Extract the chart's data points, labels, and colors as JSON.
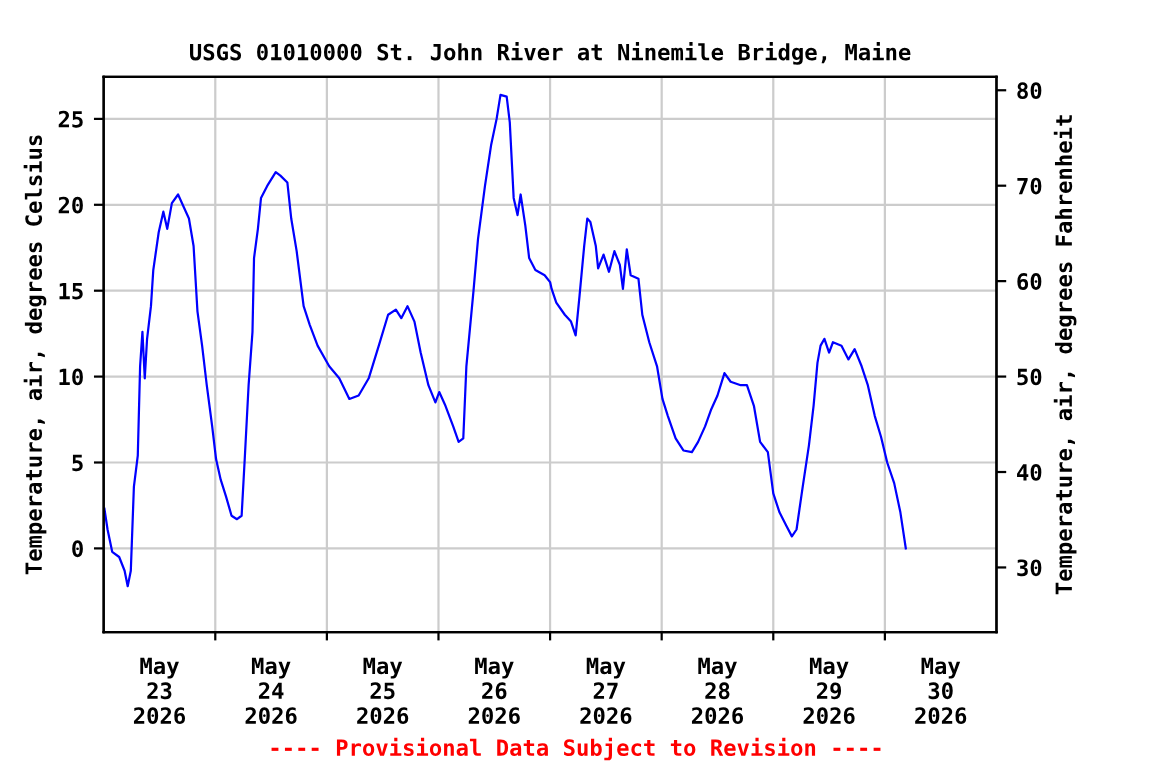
{
  "chart_data": {
    "type": "line",
    "title": "USGS 01010000 St. John River at Ninemile Bridge, Maine",
    "ylabel": "Temperature, air, degrees Celsius",
    "y2label": "Temperature, air, degrees Fahrenheit",
    "annotations": [
      "---- Provisional Data Subject to Revision ----"
    ],
    "x": [
      "2026-05-23T00:10",
      "2026-05-23T00:50",
      "2026-05-23T01:50",
      "2026-05-23T03:20",
      "2026-05-23T04:30",
      "2026-05-23T05:10",
      "2026-05-23T05:50",
      "2026-05-23T06:30",
      "2026-05-23T07:20",
      "2026-05-23T07:50",
      "2026-05-23T08:20",
      "2026-05-23T08:50",
      "2026-05-23T09:20",
      "2026-05-23T10:10",
      "2026-05-23T10:40",
      "2026-05-23T11:50",
      "2026-05-23T12:50",
      "2026-05-23T13:40",
      "2026-05-23T14:40",
      "2026-05-23T16:00",
      "2026-05-23T17:20",
      "2026-05-23T18:20",
      "2026-05-23T19:20",
      "2026-05-23T20:10",
      "2026-05-23T21:10",
      "2026-05-23T22:10",
      "2026-05-23T23:20",
      "2026-05-24T00:10",
      "2026-05-24T01:10",
      "2026-05-24T02:20",
      "2026-05-24T03:30",
      "2026-05-24T04:40",
      "2026-05-24T05:40",
      "2026-05-24T06:20",
      "2026-05-24T07:10",
      "2026-05-24T08:00",
      "2026-05-24T08:20",
      "2026-05-24T09:10",
      "2026-05-24T09:50",
      "2026-05-24T11:10",
      "2026-05-24T13:00",
      "2026-05-24T14:00",
      "2026-05-24T15:30",
      "2026-05-24T16:20",
      "2026-05-24T17:30",
      "2026-05-24T19:00",
      "2026-05-24T20:20",
      "2026-05-24T22:00",
      "2026-05-25T00:30",
      "2026-05-25T02:40",
      "2026-05-25T04:50",
      "2026-05-25T06:50",
      "2026-05-25T09:00",
      "2026-05-25T11:10",
      "2026-05-25T13:10",
      "2026-05-25T14:50",
      "2026-05-25T16:00",
      "2026-05-25T17:20",
      "2026-05-25T18:50",
      "2026-05-25T20:10",
      "2026-05-25T21:50",
      "2026-05-25T23:20",
      "2026-05-26T00:10",
      "2026-05-26T01:30",
      "2026-05-26T03:10",
      "2026-05-26T04:20",
      "2026-05-26T05:20",
      "2026-05-26T06:00",
      "2026-05-26T07:30",
      "2026-05-26T08:30",
      "2026-05-26T10:00",
      "2026-05-26T11:20",
      "2026-05-26T12:30",
      "2026-05-26T13:20",
      "2026-05-26T14:40",
      "2026-05-26T15:20",
      "2026-05-26T16:10",
      "2026-05-26T17:00",
      "2026-05-26T17:40",
      "2026-05-26T18:40",
      "2026-05-26T19:30",
      "2026-05-26T20:50",
      "2026-05-26T22:50",
      "2026-05-27T00:00",
      "2026-05-27T00:20",
      "2026-05-27T01:20",
      "2026-05-27T03:10",
      "2026-05-27T04:30",
      "2026-05-27T05:30",
      "2026-05-27T06:20",
      "2026-05-27T07:20",
      "2026-05-27T08:00",
      "2026-05-27T08:40",
      "2026-05-27T09:50",
      "2026-05-27T10:20",
      "2026-05-27T11:30",
      "2026-05-27T12:40",
      "2026-05-27T13:50",
      "2026-05-27T15:00",
      "2026-05-27T15:40",
      "2026-05-27T16:30",
      "2026-05-27T17:20",
      "2026-05-27T19:00",
      "2026-05-27T19:50",
      "2026-05-27T21:20",
      "2026-05-27T23:00",
      "2026-05-28T00:10",
      "2026-05-28T01:20",
      "2026-05-28T03:00",
      "2026-05-28T04:40",
      "2026-05-28T06:30",
      "2026-05-28T07:50",
      "2026-05-28T09:20",
      "2026-05-28T10:40",
      "2026-05-28T12:00",
      "2026-05-28T13:30",
      "2026-05-28T14:50",
      "2026-05-28T17:00",
      "2026-05-28T18:20",
      "2026-05-28T19:50",
      "2026-05-28T21:10",
      "2026-05-28T22:50",
      "2026-05-29T00:00",
      "2026-05-29T01:20",
      "2026-05-29T02:50",
      "2026-05-29T04:00",
      "2026-05-29T05:00",
      "2026-05-29T06:20",
      "2026-05-29T07:40",
      "2026-05-29T08:40",
      "2026-05-29T09:30",
      "2026-05-29T10:10",
      "2026-05-29T11:00",
      "2026-05-29T12:00",
      "2026-05-29T12:50",
      "2026-05-29T14:40",
      "2026-05-29T16:10",
      "2026-05-29T17:30",
      "2026-05-29T19:00",
      "2026-05-29T20:20",
      "2026-05-29T21:50",
      "2026-05-29T23:10",
      "2026-05-30T00:30",
      "2026-05-30T02:00",
      "2026-05-30T03:20",
      "2026-05-30T04:30"
    ],
    "series": [
      {
        "color": "#0000ff",
        "values": [
          2.3,
          1.1,
          -0.2,
          -0.5,
          -1.3,
          -2.2,
          -1.3,
          3.6,
          5.4,
          10.6,
          12.6,
          9.9,
          12.2,
          14.1,
          16.2,
          18.4,
          19.6,
          18.6,
          20.1,
          20.6,
          19.8,
          19.2,
          17.6,
          13.8,
          11.8,
          9.5,
          7.1,
          5.2,
          4.0,
          3.0,
          1.9,
          1.7,
          1.9,
          5.2,
          9.5,
          12.6,
          16.9,
          18.6,
          20.4,
          21.1,
          21.9,
          21.7,
          21.3,
          19.2,
          17.3,
          14.1,
          13.0,
          11.8,
          10.6,
          9.9,
          8.7,
          8.9,
          9.9,
          11.8,
          13.6,
          13.9,
          13.4,
          14.1,
          13.2,
          11.4,
          9.5,
          8.5,
          9.1,
          8.3,
          7.1,
          6.2,
          6.4,
          10.6,
          14.9,
          18.0,
          21.1,
          23.5,
          25.0,
          26.4,
          26.3,
          24.8,
          20.4,
          19.4,
          20.6,
          18.8,
          16.9,
          16.2,
          15.9,
          15.5,
          15.1,
          14.3,
          13.6,
          13.2,
          12.4,
          14.7,
          17.6,
          19.2,
          19.0,
          17.6,
          16.3,
          17.1,
          16.1,
          17.3,
          16.5,
          15.1,
          17.4,
          15.9,
          15.7,
          13.6,
          12.0,
          10.6,
          8.7,
          7.7,
          6.4,
          5.7,
          5.6,
          6.2,
          7.1,
          8.1,
          8.9,
          10.2,
          9.7,
          9.5,
          9.5,
          8.3,
          6.2,
          5.6,
          3.2,
          2.1,
          1.3,
          0.7,
          1.1,
          3.6,
          6.0,
          8.3,
          10.8,
          11.8,
          12.2,
          11.4,
          12.0,
          11.8,
          11.0,
          11.6,
          10.6,
          9.5,
          7.7,
          6.5,
          5.0,
          3.8,
          2.1,
          0.0
        ]
      }
    ],
    "xlim": [
      "2026-05-23T00:00",
      "2026-05-31T00:00"
    ],
    "xticks": [
      {
        "value": "2026-05-23T12:00",
        "label": "May\n23\n2026"
      },
      {
        "value": "2026-05-24T12:00",
        "label": "May\n24\n2026"
      },
      {
        "value": "2026-05-25T12:00",
        "label": "May\n25\n2026"
      },
      {
        "value": "2026-05-26T12:00",
        "label": "May\n26\n2026"
      },
      {
        "value": "2026-05-27T12:00",
        "label": "May\n27\n2026"
      },
      {
        "value": "2026-05-28T12:00",
        "label": "May\n28\n2026"
      },
      {
        "value": "2026-05-29T12:00",
        "label": "May\n29\n2026"
      },
      {
        "value": "2026-05-30T12:00",
        "label": "May\n30\n2026"
      },
      {
        "value": "2026-05-24T00:00",
        "label": null
      },
      {
        "value": "2026-05-25T00:00",
        "label": null
      },
      {
        "value": "2026-05-26T00:00",
        "label": null
      },
      {
        "value": "2026-05-27T00:00",
        "label": null
      },
      {
        "value": "2026-05-28T00:00",
        "label": null
      },
      {
        "value": "2026-05-29T00:00",
        "label": null
      },
      {
        "value": "2026-05-30T00:00",
        "label": null
      }
    ],
    "ylim": [
      -4.87,
      27.45
    ],
    "yticks": [
      0,
      5,
      10,
      15,
      20,
      25
    ],
    "y2lim": [
      23.23,
      81.41
    ],
    "y2ticks": [
      30,
      40,
      50,
      60,
      70,
      80
    ],
    "grid": true,
    "line_style": "solid",
    "marker": "none"
  }
}
